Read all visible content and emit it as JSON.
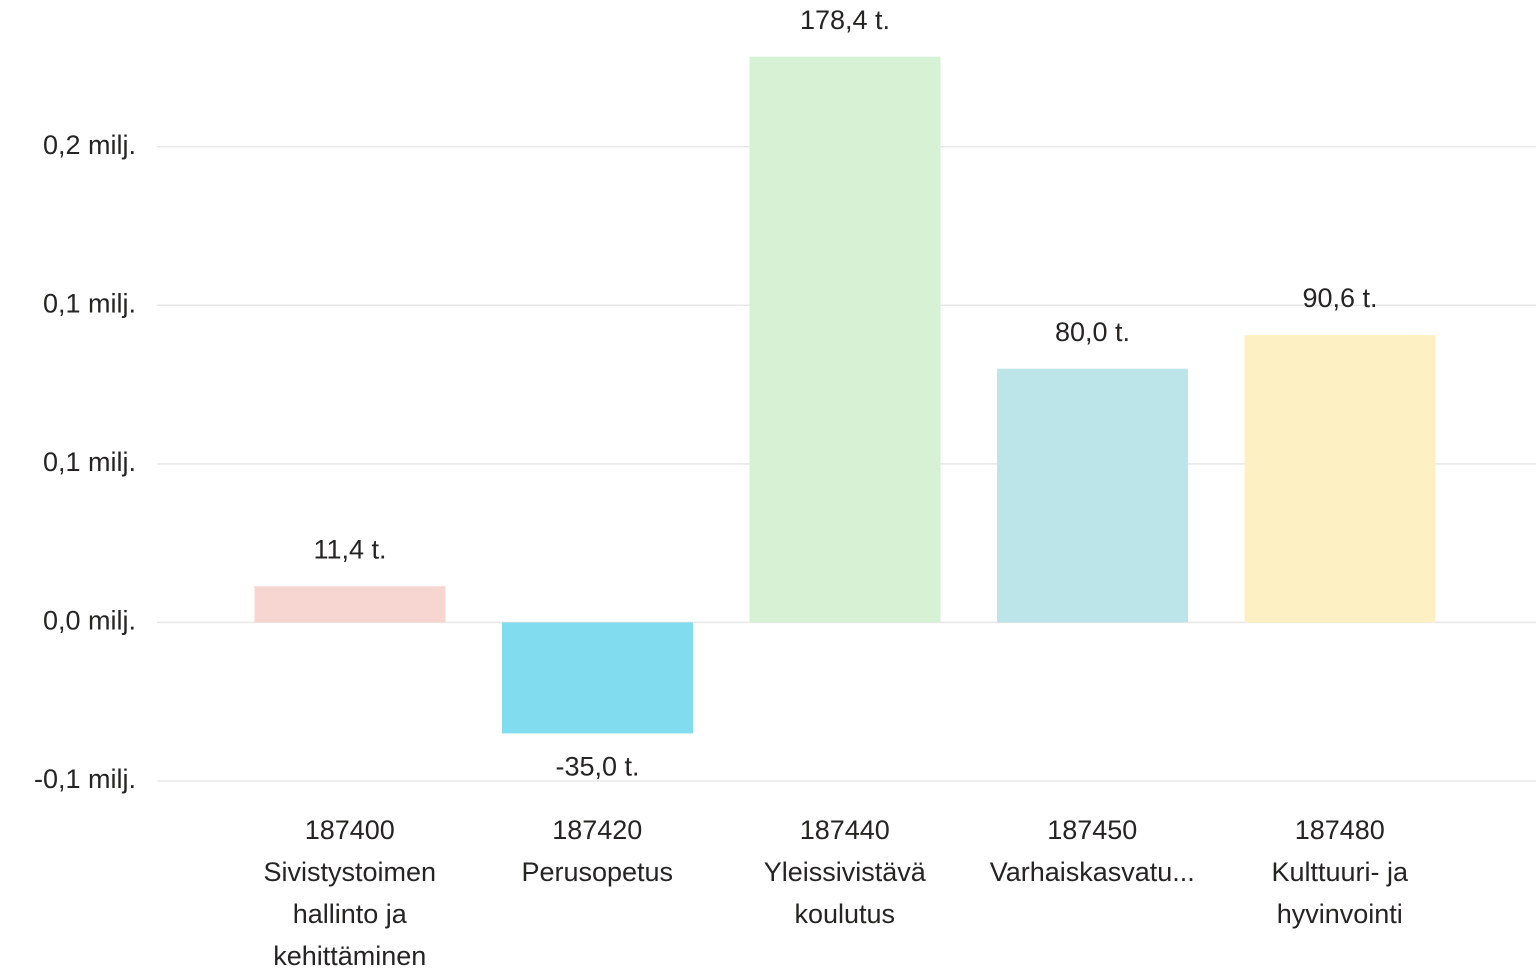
{
  "chart_data": {
    "type": "bar",
    "categories": [
      "187400\nSivistystoimen\nhallinto ja\nkehittäminen",
      "187420\nPerusopetus",
      "187440\nYleissivistävä\nkoulutus",
      "187450\nVarhaiskasvatu...",
      "187480\nKulttuuri- ja\nhyvinvointi"
    ],
    "values": [
      11400,
      -35000,
      178400,
      80000,
      90600
    ],
    "value_labels": [
      "11,4 t.",
      "-35,0 t.",
      "178,4 t.",
      "80,0 t.",
      "90,6 t."
    ],
    "colors": [
      "#f7d6d2",
      "#80dcee",
      "#d6f1d3",
      "#bbe5e8",
      "#fdf1c3"
    ],
    "ylim": [
      -50000,
      195000
    ],
    "yticks": [
      {
        "value": -50000,
        "label": "-0,1 milj."
      },
      {
        "value": 0,
        "label": "0,0 milj."
      },
      {
        "value": 50000,
        "label": "0,1 milj."
      },
      {
        "value": 100000,
        "label": "0,1 milj."
      },
      {
        "value": 150000,
        "label": "0,2 milj."
      }
    ],
    "grid": true
  }
}
